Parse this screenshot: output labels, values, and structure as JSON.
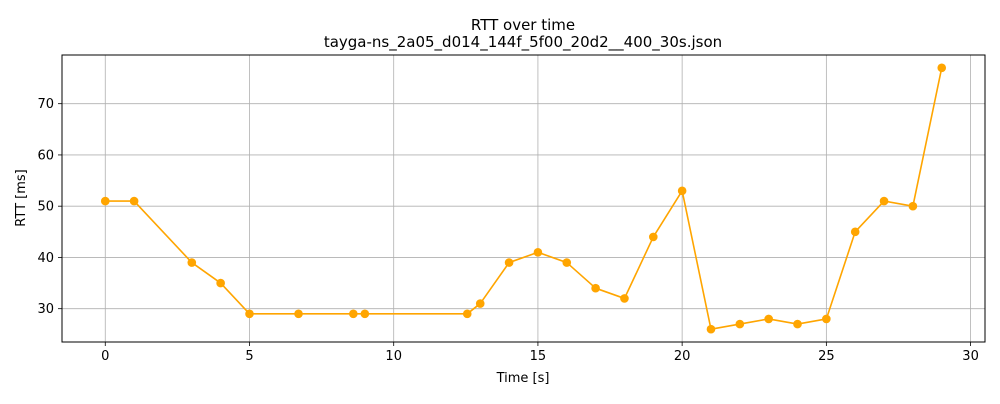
{
  "chart_data": {
    "type": "line",
    "title": "RTT over time",
    "subtitle": "tayga-ns_2a05_d014_144f_5f00_20d2__400_30s.json",
    "xlabel": "Time [s]",
    "ylabel": "RTT [ms]",
    "xlim": [
      -1.5,
      30.5
    ],
    "ylim": [
      23.5,
      79.5
    ],
    "xticks": [
      0,
      5,
      10,
      15,
      20,
      25,
      30
    ],
    "yticks": [
      30,
      40,
      50,
      60,
      70
    ],
    "grid": true,
    "line_color": "#ffa500",
    "marker": "circle",
    "series": [
      {
        "x": [
          0,
          1,
          3,
          4,
          5,
          6.7,
          8.6,
          9,
          12.55,
          13,
          14,
          15,
          16,
          17,
          18,
          19,
          20,
          21,
          22,
          23,
          24,
          25,
          26,
          27,
          28,
          29
        ],
        "y": [
          51,
          51,
          39,
          35,
          29,
          29,
          29,
          29,
          29,
          31,
          39,
          41,
          39,
          34,
          32,
          44,
          53,
          26,
          27,
          28,
          27,
          28,
          45,
          51,
          50,
          77
        ]
      }
    ]
  }
}
